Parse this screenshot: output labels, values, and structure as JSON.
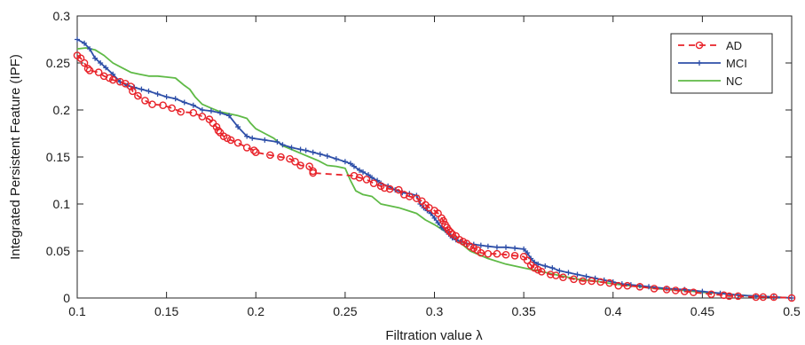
{
  "chart_data": {
    "type": "line",
    "title": "",
    "xlabel": "Filtration value λ",
    "ylabel": "Integrated Persistent Feature (IPF)",
    "xlim": [
      0.1,
      0.5
    ],
    "ylim": [
      0,
      0.3
    ],
    "xticks": [
      "0.1",
      "0.15",
      "0.2",
      "0.25",
      "0.3",
      "0.35",
      "0.4",
      "0.45",
      "0.5"
    ],
    "yticks": [
      "0",
      "0.05",
      "0.1",
      "0.15",
      "0.2",
      "0.25",
      "0.3"
    ],
    "grid": false,
    "legend_position": "top-right",
    "series": [
      {
        "name": "AD",
        "color": "#e8232a",
        "line_style": "dashed",
        "marker": "circle",
        "x": [
          0.1,
          0.102,
          0.104,
          0.106,
          0.107,
          0.112,
          0.115,
          0.118,
          0.12,
          0.124,
          0.127,
          0.13,
          0.131,
          0.134,
          0.138,
          0.142,
          0.148,
          0.153,
          0.158,
          0.165,
          0.17,
          0.174,
          0.176,
          0.178,
          0.179,
          0.18,
          0.182,
          0.184,
          0.186,
          0.19,
          0.195,
          0.199,
          0.2,
          0.208,
          0.214,
          0.219,
          0.222,
          0.225,
          0.23,
          0.232,
          0.232,
          0.255,
          0.258,
          0.262,
          0.266,
          0.27,
          0.272,
          0.275,
          0.28,
          0.283,
          0.286,
          0.29,
          0.293,
          0.295,
          0.297,
          0.3,
          0.302,
          0.304,
          0.305,
          0.306,
          0.307,
          0.308,
          0.309,
          0.31,
          0.312,
          0.314,
          0.316,
          0.318,
          0.32,
          0.322,
          0.324,
          0.326,
          0.33,
          0.335,
          0.34,
          0.345,
          0.35,
          0.352,
          0.354,
          0.356,
          0.358,
          0.36,
          0.365,
          0.368,
          0.372,
          0.378,
          0.383,
          0.388,
          0.393,
          0.398,
          0.403,
          0.408,
          0.415,
          0.423,
          0.43,
          0.435,
          0.44,
          0.445,
          0.455,
          0.462,
          0.465,
          0.47,
          0.48,
          0.484,
          0.49,
          0.5
        ],
        "y": [
          0.258,
          0.255,
          0.25,
          0.244,
          0.242,
          0.24,
          0.236,
          0.234,
          0.232,
          0.23,
          0.228,
          0.225,
          0.22,
          0.215,
          0.21,
          0.206,
          0.205,
          0.202,
          0.198,
          0.197,
          0.193,
          0.19,
          0.186,
          0.182,
          0.178,
          0.176,
          0.172,
          0.17,
          0.168,
          0.165,
          0.16,
          0.157,
          0.155,
          0.152,
          0.15,
          0.148,
          0.145,
          0.141,
          0.14,
          0.135,
          0.133,
          0.13,
          0.128,
          0.126,
          0.122,
          0.119,
          0.117,
          0.116,
          0.115,
          0.11,
          0.108,
          0.106,
          0.103,
          0.099,
          0.096,
          0.093,
          0.09,
          0.085,
          0.082,
          0.078,
          0.075,
          0.072,
          0.07,
          0.068,
          0.066,
          0.062,
          0.06,
          0.058,
          0.055,
          0.053,
          0.051,
          0.048,
          0.047,
          0.047,
          0.046,
          0.045,
          0.044,
          0.04,
          0.035,
          0.032,
          0.03,
          0.028,
          0.025,
          0.024,
          0.022,
          0.02,
          0.018,
          0.018,
          0.017,
          0.016,
          0.013,
          0.013,
          0.012,
          0.01,
          0.009,
          0.008,
          0.007,
          0.006,
          0.004,
          0.003,
          0.002,
          0.002,
          0.001,
          0.001,
          0.001,
          0.0
        ]
      },
      {
        "name": "MCI",
        "color": "#2e4fa8",
        "line_style": "solid",
        "marker": "plus",
        "x": [
          0.1,
          0.104,
          0.107,
          0.11,
          0.113,
          0.116,
          0.12,
          0.124,
          0.128,
          0.132,
          0.136,
          0.14,
          0.145,
          0.15,
          0.155,
          0.16,
          0.165,
          0.17,
          0.175,
          0.18,
          0.185,
          0.19,
          0.195,
          0.198,
          0.205,
          0.212,
          0.215,
          0.22,
          0.225,
          0.228,
          0.232,
          0.236,
          0.24,
          0.245,
          0.25,
          0.253,
          0.255,
          0.258,
          0.26,
          0.263,
          0.265,
          0.268,
          0.27,
          0.274,
          0.278,
          0.282,
          0.286,
          0.29,
          0.292,
          0.294,
          0.296,
          0.298,
          0.3,
          0.302,
          0.304,
          0.306,
          0.308,
          0.31,
          0.312,
          0.315,
          0.318,
          0.322,
          0.326,
          0.33,
          0.335,
          0.34,
          0.345,
          0.35,
          0.352,
          0.354,
          0.356,
          0.358,
          0.362,
          0.366,
          0.37,
          0.375,
          0.38,
          0.385,
          0.39,
          0.395,
          0.4,
          0.405,
          0.41,
          0.415,
          0.42,
          0.43,
          0.44,
          0.45,
          0.46,
          0.47,
          0.48,
          0.49,
          0.5
        ],
        "y": [
          0.275,
          0.271,
          0.265,
          0.255,
          0.25,
          0.245,
          0.238,
          0.23,
          0.226,
          0.224,
          0.222,
          0.22,
          0.217,
          0.214,
          0.212,
          0.208,
          0.205,
          0.2,
          0.199,
          0.197,
          0.194,
          0.182,
          0.172,
          0.17,
          0.168,
          0.166,
          0.163,
          0.16,
          0.158,
          0.157,
          0.155,
          0.153,
          0.151,
          0.148,
          0.145,
          0.143,
          0.14,
          0.136,
          0.134,
          0.131,
          0.128,
          0.125,
          0.122,
          0.119,
          0.115,
          0.112,
          0.111,
          0.109,
          0.1,
          0.096,
          0.093,
          0.09,
          0.085,
          0.08,
          0.075,
          0.072,
          0.068,
          0.064,
          0.062,
          0.06,
          0.058,
          0.057,
          0.056,
          0.055,
          0.054,
          0.054,
          0.053,
          0.052,
          0.048,
          0.042,
          0.038,
          0.036,
          0.034,
          0.032,
          0.029,
          0.027,
          0.025,
          0.023,
          0.021,
          0.019,
          0.017,
          0.015,
          0.014,
          0.013,
          0.012,
          0.01,
          0.009,
          0.007,
          0.005,
          0.003,
          0.002,
          0.001,
          0.0
        ]
      },
      {
        "name": "NC",
        "color": "#5fba46",
        "line_style": "solid",
        "marker": "none",
        "x": [
          0.1,
          0.105,
          0.11,
          0.115,
          0.12,
          0.125,
          0.13,
          0.135,
          0.14,
          0.145,
          0.15,
          0.155,
          0.16,
          0.163,
          0.166,
          0.17,
          0.175,
          0.18,
          0.185,
          0.19,
          0.195,
          0.197,
          0.2,
          0.205,
          0.21,
          0.215,
          0.22,
          0.225,
          0.23,
          0.235,
          0.24,
          0.245,
          0.25,
          0.253,
          0.256,
          0.26,
          0.265,
          0.27,
          0.275,
          0.28,
          0.285,
          0.29,
          0.295,
          0.3,
          0.305,
          0.31,
          0.315,
          0.32,
          0.33,
          0.34,
          0.35,
          0.36,
          0.37,
          0.38,
          0.39,
          0.4,
          0.41,
          0.42,
          0.43,
          0.44,
          0.45,
          0.46,
          0.47,
          0.48,
          0.49,
          0.5
        ],
        "y": [
          0.265,
          0.266,
          0.264,
          0.258,
          0.25,
          0.245,
          0.24,
          0.238,
          0.236,
          0.236,
          0.235,
          0.234,
          0.226,
          0.222,
          0.214,
          0.206,
          0.202,
          0.198,
          0.196,
          0.194,
          0.191,
          0.186,
          0.18,
          0.175,
          0.17,
          0.162,
          0.158,
          0.154,
          0.15,
          0.146,
          0.141,
          0.14,
          0.138,
          0.125,
          0.114,
          0.11,
          0.108,
          0.1,
          0.098,
          0.096,
          0.093,
          0.09,
          0.083,
          0.078,
          0.072,
          0.066,
          0.058,
          0.05,
          0.042,
          0.036,
          0.032,
          0.028,
          0.024,
          0.02,
          0.018,
          0.015,
          0.013,
          0.011,
          0.009,
          0.008,
          0.006,
          0.005,
          0.003,
          0.002,
          0.001,
          0.0
        ]
      }
    ]
  }
}
